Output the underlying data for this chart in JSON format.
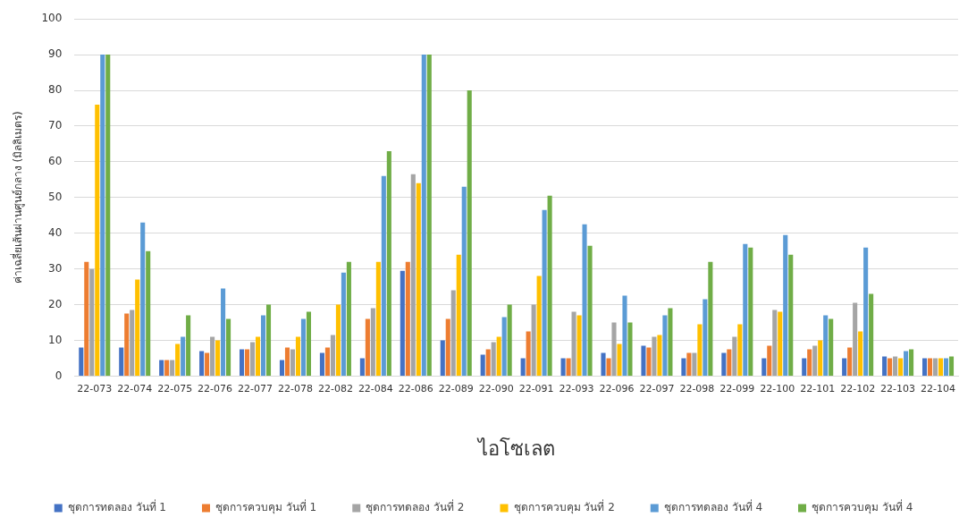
{
  "chart_data": {
    "type": "bar",
    "xlabel": "ไอโซเลต",
    "ylabel": "ค่าเฉลี่ยเส้นผ่านศูนย์กลาง (มิลลิเมตร)",
    "categories": [
      "22-073",
      "22-074",
      "22-075",
      "22-076",
      "22-077",
      "22-078",
      "22-082",
      "22-084",
      "22-086",
      "22-089",
      "22-090",
      "22-091",
      "22-093",
      "22-096",
      "22-097",
      "22-098",
      "22-099",
      "22-100",
      "22-101",
      "22-102",
      "22-103",
      "22-104"
    ],
    "series": [
      {
        "name": "ชุดการทดลอง วันที่ 1",
        "color": "#4472c4",
        "values": [
          8,
          8,
          4.5,
          7,
          7.5,
          4.5,
          6.5,
          5,
          29.5,
          10,
          6,
          5,
          5,
          6.5,
          8.5,
          5,
          6.5,
          5,
          5,
          5,
          5.5,
          5
        ]
      },
      {
        "name": "ชุดการควบคุม วันที่ 1",
        "color": "#ed7d31",
        "values": [
          32,
          17.5,
          4.5,
          6.5,
          7.5,
          8,
          8,
          16,
          32,
          16,
          7.5,
          12.5,
          5,
          5,
          8,
          6.5,
          7.5,
          8.5,
          7.5,
          8,
          5,
          5
        ]
      },
      {
        "name": "ชุดการทดลอง วันที่ 2",
        "color": "#a5a5a5",
        "values": [
          30,
          18.5,
          4.5,
          11,
          9.5,
          7.5,
          11.5,
          19,
          56.5,
          24,
          9.5,
          20,
          18,
          15,
          11,
          6.5,
          11,
          18.5,
          8.5,
          20.5,
          5.5,
          5
        ]
      },
      {
        "name": "ชุดการควบคุม วันที่ 2",
        "color": "#ffc000",
        "values": [
          76,
          27,
          9,
          10,
          11,
          11,
          20,
          32,
          54,
          34,
          11,
          28,
          17,
          9,
          11.5,
          14.5,
          14.5,
          18,
          10,
          12.5,
          5,
          5
        ]
      },
      {
        "name": "ชุดการทดลอง วันที่ 4",
        "color": "#5b9bd5",
        "values": [
          90,
          43,
          11,
          24.5,
          17,
          16,
          29,
          56,
          90,
          53,
          16.5,
          46.5,
          42.5,
          22.5,
          17,
          21.5,
          37,
          39.5,
          17,
          36,
          7,
          5
        ]
      },
      {
        "name": "ชุดการควบคุม วันที่ 4",
        "color": "#70ad47",
        "values": [
          90,
          35,
          17,
          16,
          20,
          18,
          32,
          63,
          90,
          80,
          20,
          50.5,
          36.5,
          15,
          19,
          32,
          36,
          34,
          16,
          23,
          7.5,
          5.5
        ]
      }
    ],
    "ylim": [
      0,
      100
    ],
    "yticks": [
      0,
      10,
      20,
      30,
      40,
      50,
      60,
      70,
      80,
      90,
      100
    ],
    "grid": "y",
    "legend": "bottom"
  }
}
